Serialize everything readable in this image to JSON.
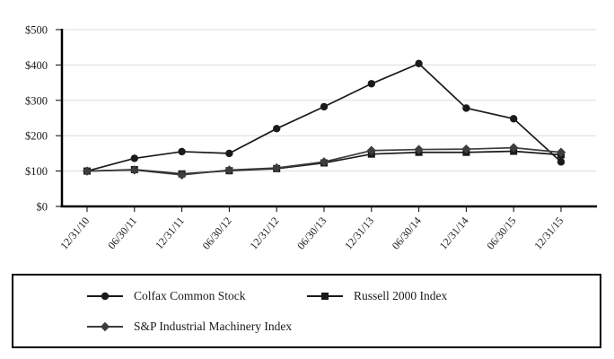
{
  "chart_data": {
    "type": "line",
    "title": "",
    "xlabel": "",
    "ylabel": "",
    "categories": [
      "12/31/10",
      "06/30/11",
      "12/31/11",
      "06/30/12",
      "12/31/12",
      "06/30/13",
      "12/31/13",
      "06/30/14",
      "12/31/14",
      "06/30/15",
      "12/31/15"
    ],
    "series": [
      {
        "name": "Colfax Common Stock",
        "marker": "circle",
        "color": "#1a1a1a",
        "values": [
          100,
          136,
          155,
          150,
          220,
          282,
          347,
          404,
          278,
          248,
          126
        ]
      },
      {
        "name": "Russell 2000 Index",
        "marker": "square",
        "color": "#1a1a1a",
        "values": [
          100,
          104,
          92,
          101,
          107,
          123,
          148,
          153,
          153,
          156,
          146
        ]
      },
      {
        "name": "S&P Industrial Machinery Index",
        "marker": "diamond",
        "color": "#3d3d3d",
        "values": [
          100,
          103,
          89,
          103,
          109,
          126,
          158,
          161,
          162,
          166,
          153
        ]
      }
    ],
    "ylim": [
      0,
      500
    ],
    "y_ticks": [
      0,
      100,
      200,
      300,
      400,
      500
    ],
    "y_tick_labels": [
      "$0",
      "$100",
      "$200",
      "$300",
      "$400",
      "$500"
    ],
    "grid": "horizontal",
    "legend_position": "bottom-box",
    "colors": {
      "grid": "#dcdcdc",
      "axis": "#000000",
      "text": "#000000",
      "background": "#ffffff"
    }
  }
}
